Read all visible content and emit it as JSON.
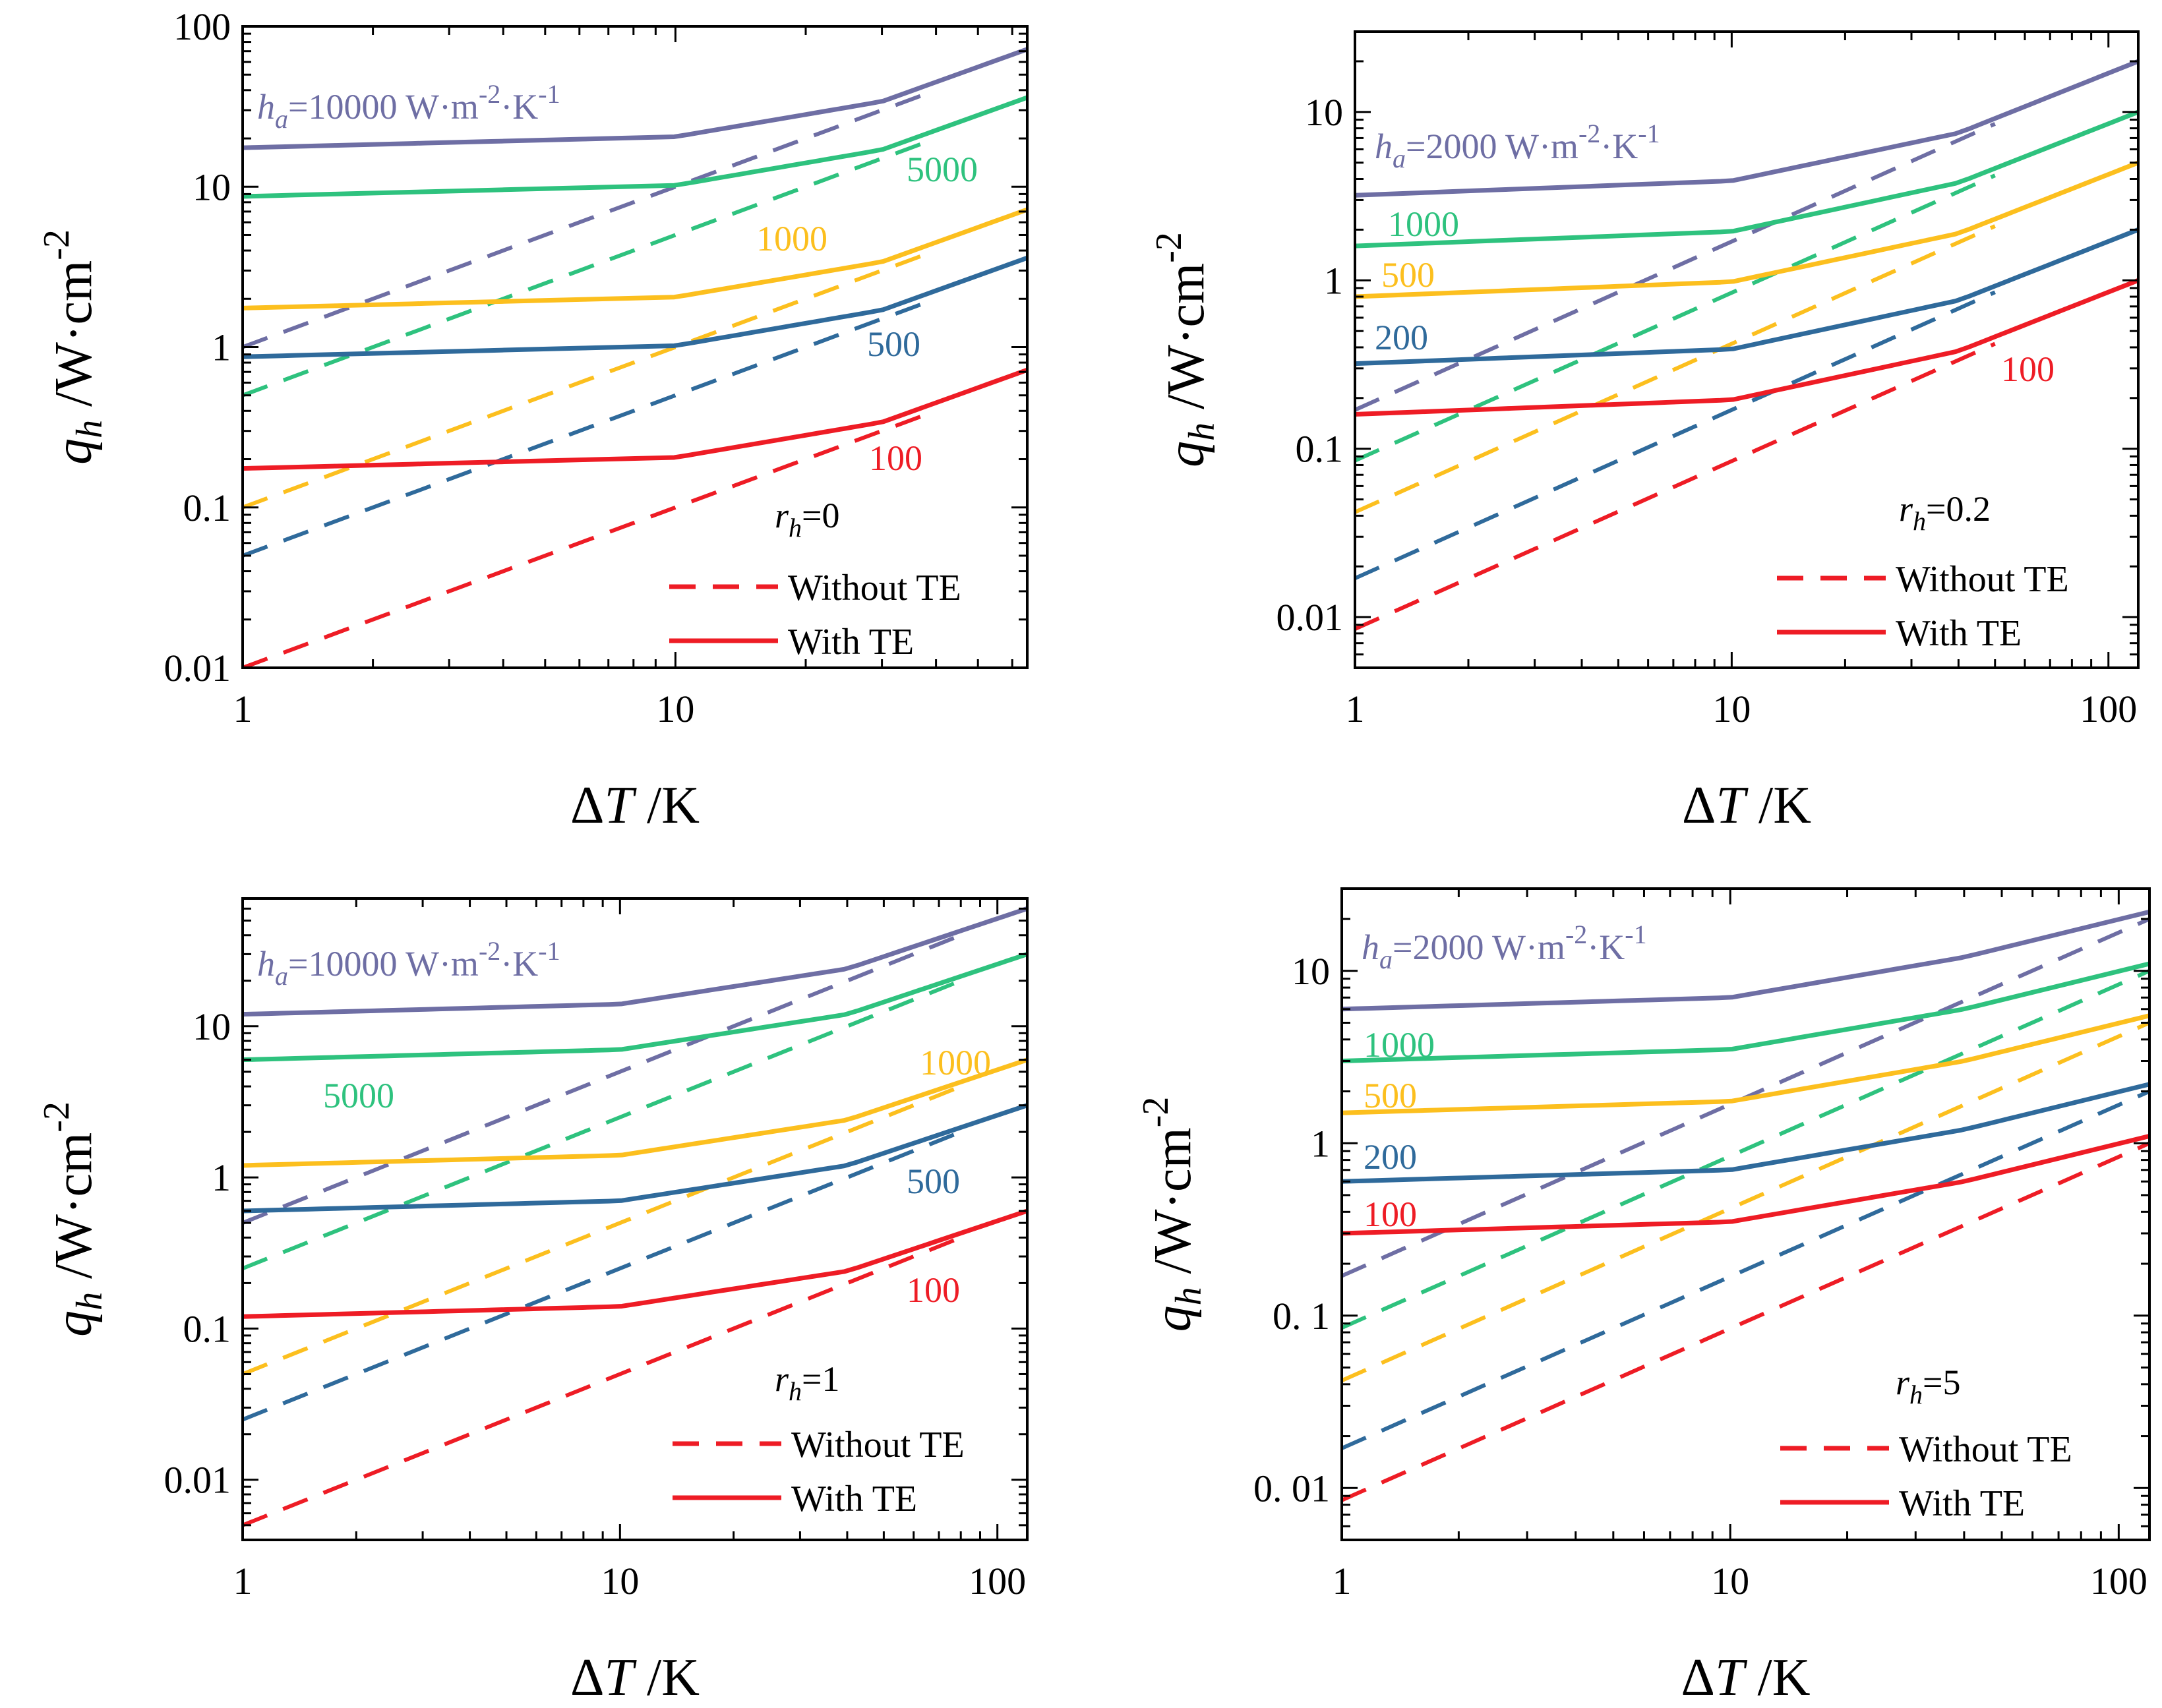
{
  "chart_data": [
    {
      "type": "line",
      "title": "",
      "x_scale": "log",
      "y_scale": "log",
      "xlim": [
        1,
        65
      ],
      "ylim": [
        0.01,
        100
      ],
      "xticks": [
        1,
        10
      ],
      "xtick_labels": [
        "1",
        "10"
      ],
      "yticks": [
        0.01,
        0.1,
        1,
        10,
        100
      ],
      "ytick_labels": [
        "0.01",
        "0.1",
        "1",
        "10",
        "100"
      ],
      "xlabel": {
        "main": "ΔT",
        "italic": "T",
        "unit": " /K"
      },
      "ylabel": {
        "main": "q",
        "sub": "h",
        "unit": " /W·cm",
        "sup": "-2"
      },
      "parameter": {
        "symbol": "r",
        "sub": "h",
        "value": "=0"
      },
      "ha_label": {
        "symbol": "h",
        "sub": "a",
        "value": "=10000 W·m",
        "sup1": "-2",
        "mid": "·K",
        "sup2": "-1"
      },
      "legend": {
        "dashed": "Without TE",
        "solid": "With TE",
        "color": "#ee1c25"
      },
      "series": [
        {
          "name": "10000",
          "show_label": false,
          "color": "#6e6ea4",
          "with_te": [
            [
              1,
              17.5
            ],
            [
              10,
              20.5
            ],
            [
              30,
              34
            ],
            [
              65,
              72
            ]
          ],
          "without_te": [
            [
              1,
              1.0
            ],
            [
              40,
              40
            ]
          ]
        },
        {
          "name": "5000",
          "show_label": true,
          "color": "#2ec27e",
          "with_te": [
            [
              1,
              8.7
            ],
            [
              10,
              10.2
            ],
            [
              30,
              17
            ],
            [
              65,
              36
            ]
          ],
          "without_te": [
            [
              1,
              0.5
            ],
            [
              40,
              20
            ]
          ]
        },
        {
          "name": "1000",
          "show_label": true,
          "color": "#fcbf1e",
          "with_te": [
            [
              1,
              1.75
            ],
            [
              10,
              2.05
            ],
            [
              30,
              3.4
            ],
            [
              65,
              7.2
            ]
          ],
          "without_te": [
            [
              1,
              0.1
            ],
            [
              40,
              4
            ]
          ]
        },
        {
          "name": "500",
          "show_label": true,
          "color": "#2f6a9b",
          "with_te": [
            [
              1,
              0.87
            ],
            [
              10,
              1.02
            ],
            [
              30,
              1.7
            ],
            [
              65,
              3.6
            ]
          ],
          "without_te": [
            [
              1,
              0.05
            ],
            [
              40,
              2
            ]
          ]
        },
        {
          "name": "100",
          "show_label": true,
          "color": "#ee1c25",
          "with_te": [
            [
              1,
              0.175
            ],
            [
              10,
              0.205
            ],
            [
              30,
              0.34
            ],
            [
              65,
              0.72
            ]
          ],
          "without_te": [
            [
              1,
              0.01
            ],
            [
              40,
              0.4
            ]
          ]
        }
      ]
    },
    {
      "type": "line",
      "title": "",
      "x_scale": "log",
      "y_scale": "log",
      "xlim": [
        1,
        120
      ],
      "ylim": [
        0.005,
        30
      ],
      "xticks": [
        1,
        10,
        100
      ],
      "xtick_labels": [
        "1",
        "10",
        "100"
      ],
      "yticks": [
        0.01,
        0.1,
        1,
        10
      ],
      "ytick_labels": [
        "0.01",
        "0.1",
        "1",
        "10"
      ],
      "xlabel": {
        "main": "ΔT",
        "italic": "T",
        "unit": " /K"
      },
      "ylabel": {
        "main": "q",
        "sub": "h",
        "unit": " /W·cm",
        "sup": "-2"
      },
      "parameter": {
        "symbol": "r",
        "sub": "h",
        "value": "=0.2"
      },
      "ha_label": {
        "symbol": "h",
        "sub": "a",
        "value": "=2000 W·m",
        "sup1": "-2",
        "mid": "·K",
        "sup2": "-1"
      },
      "legend": {
        "dashed": "Without TE",
        "solid": "With TE",
        "color": "#ee1c25"
      },
      "series": [
        {
          "name": "2000",
          "show_label": false,
          "color": "#6e6ea4",
          "with_te": [
            [
              1,
              3.2
            ],
            [
              10,
              3.9
            ],
            [
              40,
              7.5
            ],
            [
              120,
              20
            ]
          ],
          "without_te": [
            [
              1,
              0.17
            ],
            [
              50,
              8.5
            ]
          ]
        },
        {
          "name": "1000",
          "show_label": true,
          "color": "#2ec27e",
          "with_te": [
            [
              1,
              1.6
            ],
            [
              10,
              1.95
            ],
            [
              40,
              3.8
            ],
            [
              120,
              10
            ]
          ],
          "without_te": [
            [
              1,
              0.085
            ],
            [
              50,
              4.2
            ]
          ]
        },
        {
          "name": "500",
          "show_label": true,
          "color": "#fcbf1e",
          "with_te": [
            [
              1,
              0.8
            ],
            [
              10,
              0.98
            ],
            [
              40,
              1.9
            ],
            [
              120,
              5
            ]
          ],
          "without_te": [
            [
              1,
              0.042
            ],
            [
              50,
              2.1
            ]
          ]
        },
        {
          "name": "200",
          "show_label": true,
          "color": "#2f6a9b",
          "with_te": [
            [
              1,
              0.32
            ],
            [
              10,
              0.39
            ],
            [
              40,
              0.76
            ],
            [
              120,
              2
            ]
          ],
          "without_te": [
            [
              1,
              0.017
            ],
            [
              50,
              0.85
            ]
          ]
        },
        {
          "name": "100",
          "show_label": true,
          "color": "#ee1c25",
          "with_te": [
            [
              1,
              0.16
            ],
            [
              10,
              0.195
            ],
            [
              40,
              0.38
            ],
            [
              120,
              1
            ]
          ],
          "without_te": [
            [
              1,
              0.0085
            ],
            [
              50,
              0.42
            ]
          ]
        }
      ]
    },
    {
      "type": "line",
      "title": "",
      "x_scale": "log",
      "y_scale": "log",
      "xlim": [
        1,
        120
      ],
      "ylim": [
        0.004,
        70
      ],
      "xticks": [
        1,
        10,
        100
      ],
      "xtick_labels": [
        "1",
        "10",
        "100"
      ],
      "yticks": [
        0.01,
        0.1,
        1,
        10
      ],
      "ytick_labels": [
        "0.01",
        "0.1",
        "1",
        "10"
      ],
      "xlabel": {
        "main": "ΔT",
        "italic": "T",
        "unit": " /K"
      },
      "ylabel": {
        "main": "q",
        "sub": "h",
        "unit": " /W·cm",
        "sup": "-2"
      },
      "parameter": {
        "symbol": "r",
        "sub": "h",
        "value": "=1"
      },
      "ha_label": {
        "symbol": "h",
        "sub": "a",
        "value": "=10000 W·m",
        "sup1": "-2",
        "mid": "·K",
        "sup2": "-1"
      },
      "legend": {
        "dashed": "Without TE",
        "solid": "With TE",
        "color": "#ee1c25"
      },
      "series": [
        {
          "name": "10000",
          "show_label": false,
          "color": "#6e6ea4",
          "with_te": [
            [
              1,
              12
            ],
            [
              10,
              14
            ],
            [
              40,
              24
            ],
            [
              120,
              60
            ]
          ],
          "without_te": [
            [
              1,
              0.5
            ],
            [
              80,
              40
            ]
          ]
        },
        {
          "name": "5000",
          "show_label": true,
          "color": "#2ec27e",
          "with_te": [
            [
              1,
              6
            ],
            [
              10,
              7
            ],
            [
              40,
              12
            ],
            [
              120,
              30
            ]
          ],
          "without_te": [
            [
              1,
              0.25
            ],
            [
              80,
              20
            ]
          ]
        },
        {
          "name": "1000",
          "show_label": true,
          "color": "#fcbf1e",
          "with_te": [
            [
              1,
              1.2
            ],
            [
              10,
              1.4
            ],
            [
              40,
              2.4
            ],
            [
              120,
              6
            ]
          ],
          "without_te": [
            [
              1,
              0.05
            ],
            [
              80,
              4
            ]
          ]
        },
        {
          "name": "500",
          "show_label": true,
          "color": "#2f6a9b",
          "with_te": [
            [
              1,
              0.6
            ],
            [
              10,
              0.7
            ],
            [
              40,
              1.2
            ],
            [
              120,
              3
            ]
          ],
          "without_te": [
            [
              1,
              0.025
            ],
            [
              80,
              2
            ]
          ]
        },
        {
          "name": "100",
          "show_label": true,
          "color": "#ee1c25",
          "with_te": [
            [
              1,
              0.12
            ],
            [
              10,
              0.14
            ],
            [
              40,
              0.24
            ],
            [
              120,
              0.6
            ]
          ],
          "without_te": [
            [
              1,
              0.005
            ],
            [
              80,
              0.4
            ]
          ]
        }
      ]
    },
    {
      "type": "line",
      "title": "",
      "x_scale": "log",
      "y_scale": "log",
      "xlim": [
        1,
        120
      ],
      "ylim": [
        0.005,
        30
      ],
      "xticks": [
        1,
        10,
        100
      ],
      "xtick_labels": [
        "1",
        "10",
        "100"
      ],
      "yticks": [
        0.01,
        0.1,
        1,
        10
      ],
      "ytick_labels": [
        "0. 01",
        "0. 1",
        "1",
        "10"
      ],
      "xlabel": {
        "main": "ΔT",
        "italic": "T",
        "unit": " /K"
      },
      "ylabel": {
        "main": "q",
        "sub": "h",
        "unit": " /W·cm",
        "sup": "-2"
      },
      "parameter": {
        "symbol": "r",
        "sub": "h",
        "value": "=5"
      },
      "ha_label": {
        "symbol": "h",
        "sub": "a",
        "value": "=2000 W·m",
        "sup1": "-2",
        "mid": "·K",
        "sup2": "-1"
      },
      "legend": {
        "dashed": "Without TE",
        "solid": "With TE",
        "color": "#ee1c25"
      },
      "series": [
        {
          "name": "2000",
          "show_label": false,
          "color": "#6e6ea4",
          "with_te": [
            [
              1,
              6
            ],
            [
              10,
              7
            ],
            [
              40,
              12
            ],
            [
              120,
              22
            ]
          ],
          "without_te": [
            [
              1,
              0.17
            ],
            [
              120,
              20
            ]
          ]
        },
        {
          "name": "1000",
          "show_label": true,
          "color": "#2ec27e",
          "with_te": [
            [
              1,
              3
            ],
            [
              10,
              3.5
            ],
            [
              40,
              6
            ],
            [
              120,
              11
            ]
          ],
          "without_te": [
            [
              1,
              0.085
            ],
            [
              120,
              10
            ]
          ]
        },
        {
          "name": "500",
          "show_label": true,
          "color": "#fcbf1e",
          "with_te": [
            [
              1,
              1.5
            ],
            [
              10,
              1.75
            ],
            [
              40,
              3
            ],
            [
              120,
              5.5
            ]
          ],
          "without_te": [
            [
              1,
              0.042
            ],
            [
              120,
              5
            ]
          ]
        },
        {
          "name": "200",
          "show_label": true,
          "color": "#2f6a9b",
          "with_te": [
            [
              1,
              0.6
            ],
            [
              10,
              0.7
            ],
            [
              40,
              1.2
            ],
            [
              120,
              2.2
            ]
          ],
          "without_te": [
            [
              1,
              0.017
            ],
            [
              120,
              2
            ]
          ]
        },
        {
          "name": "100",
          "show_label": true,
          "color": "#ee1c25",
          "with_te": [
            [
              1,
              0.3
            ],
            [
              10,
              0.35
            ],
            [
              40,
              0.6
            ],
            [
              120,
              1.1
            ]
          ],
          "without_te": [
            [
              1,
              0.0085
            ],
            [
              120,
              1
            ]
          ]
        }
      ]
    }
  ]
}
